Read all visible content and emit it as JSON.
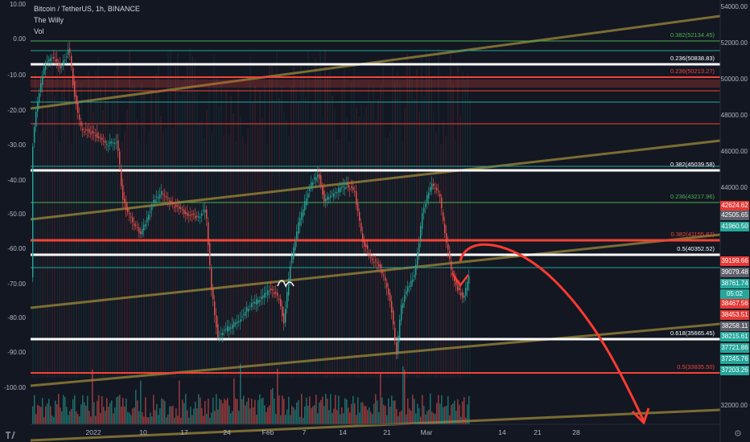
{
  "header": {
    "symbol_line": "Bitcoin / TetherUS, 1h, BINANCE",
    "indicator_1": "The Willy",
    "indicator_2": "Vol"
  },
  "left_axis": {
    "labels": [
      "10.00",
      "0.00",
      "-10.00",
      "-20.00",
      "-30.00",
      "-40.00",
      "-50.00",
      "-60.00",
      "-70.00",
      "-80.00",
      "-90.00",
      "-100.00"
    ]
  },
  "right_axis": {
    "labels": [
      "54000.00",
      "52000.00",
      "50000.00",
      "48000.00",
      "46000.00",
      "44000.00",
      "32000.00"
    ]
  },
  "time_axis": {
    "labels": [
      "2022",
      "10",
      "17",
      "24",
      "Feb",
      "7",
      "14",
      "21",
      "Mar",
      "14",
      "21",
      "28"
    ]
  },
  "fib_levels": [
    {
      "text": "0.382(52134.45)",
      "color": "#4caf50"
    },
    {
      "text": "0.236(50838.83)",
      "color": "#ffffff"
    },
    {
      "text": "0.236(50213.27)",
      "color": "#f44336"
    },
    {
      "text": "0.382(45039.58)",
      "color": "#ffffff"
    },
    {
      "text": "0.236(43217.96)",
      "color": "#4caf50"
    },
    {
      "text": "0.382(41155.87)",
      "color": "#f44336"
    },
    {
      "text": "0.5(40352.52)",
      "color": "#ffffff"
    },
    {
      "text": "0.618(35665.45)",
      "color": "#ffffff"
    },
    {
      "text": "0.5(33835.50)",
      "color": "#f44336"
    }
  ],
  "price_tags": [
    {
      "text": "42624.62",
      "bg": "#e53935"
    },
    {
      "text": "42505.65",
      "bg": "#5d606b"
    },
    {
      "text": "41960.50",
      "bg": "#26a69a"
    },
    {
      "text": "39199.66",
      "bg": "#e53935"
    },
    {
      "text": "39079.48",
      "bg": "#5d606b"
    },
    {
      "text": "38761.74",
      "bg": "#26a69a"
    },
    {
      "text": "05:02",
      "bg": "#26a69a"
    },
    {
      "text": "38467.56",
      "bg": "#e53935"
    },
    {
      "text": "38453.51",
      "bg": "#e53935"
    },
    {
      "text": "38258.11",
      "bg": "#5d606b"
    },
    {
      "text": "38215.61",
      "bg": "#26a69a"
    },
    {
      "text": "37721.86",
      "bg": "#26a69a"
    },
    {
      "text": "37245.76",
      "bg": "#26a69a"
    },
    {
      "text": "37203.26",
      "bg": "#26a69a"
    }
  ],
  "colors": {
    "background": "#131722",
    "up": "#26a69a",
    "down": "#ef5350",
    "channel": "#a8913a",
    "projection": "#ff3b30"
  },
  "icons": {
    "logo": "tradingview-logo-icon",
    "settings": "gear-icon"
  }
}
